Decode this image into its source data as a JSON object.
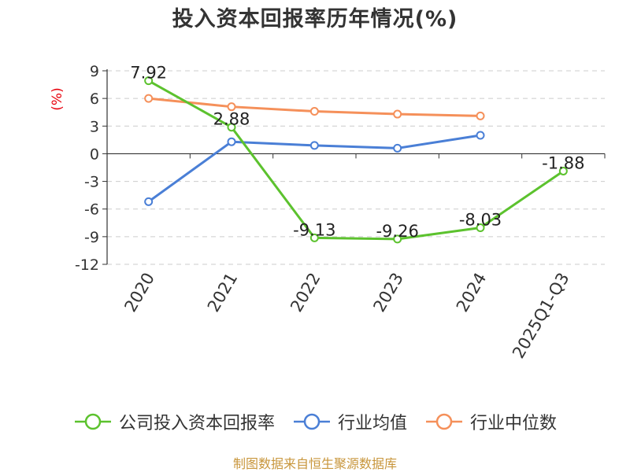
{
  "chart_data": {
    "type": "line",
    "title": "投入资本回报率历年情况(%)",
    "ylabel": "(%)",
    "xlabel": "",
    "categories": [
      "2020",
      "2021",
      "2022",
      "2023",
      "2024",
      "2025Q1-Q3"
    ],
    "yticks": [
      9,
      6,
      3,
      0,
      -3,
      -6,
      -9,
      -12
    ],
    "ylim": [
      -12,
      9
    ],
    "grid": true,
    "legend_position": "bottom",
    "series": [
      {
        "name": "公司投入资本回报率",
        "color": "#5cc22e",
        "values": [
          7.92,
          2.88,
          -9.13,
          -9.26,
          -8.03,
          -1.88
        ],
        "labels": [
          "7.92",
          "2.88",
          "-9.13",
          "-9.26",
          "-8.03",
          "-1.88"
        ]
      },
      {
        "name": "行业均值",
        "color": "#4a7fd6",
        "values": [
          -5.2,
          1.3,
          0.9,
          0.6,
          2.0,
          null
        ]
      },
      {
        "name": "行业中位数",
        "color": "#f5905a",
        "values": [
          6.0,
          5.1,
          4.6,
          4.3,
          4.1,
          null
        ]
      }
    ]
  },
  "ylabel_color": "#e8000b",
  "source": "制图数据来自恒生聚源数据库"
}
